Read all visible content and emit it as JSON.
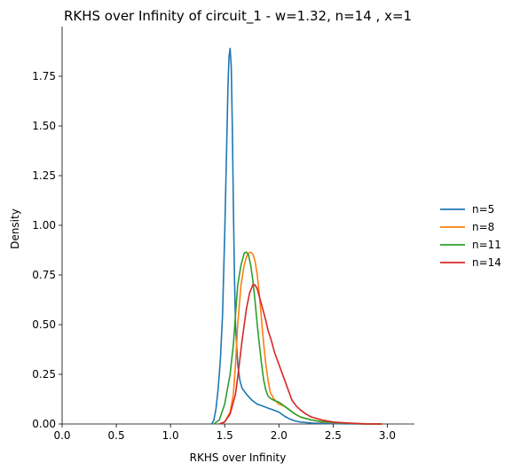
{
  "chart_data": {
    "type": "line",
    "title": "RKHS over Infinity of circuit_1 - w=1.32, n=14 , x=1",
    "xlabel": "RKHS over Infinity",
    "ylabel": "Density",
    "xlim": [
      0.0,
      3.25
    ],
    "ylim": [
      0.0,
      2.0
    ],
    "xticks": [
      0.0,
      0.5,
      1.0,
      1.5,
      2.0,
      2.5,
      3.0
    ],
    "yticks": [
      0.0,
      0.25,
      0.5,
      0.75,
      1.0,
      1.25,
      1.5,
      1.75
    ],
    "grid": false,
    "legend_position": "right",
    "series": [
      {
        "name": "n=5",
        "color": "#1f77b4",
        "x": [
          1.38,
          1.4,
          1.42,
          1.44,
          1.46,
          1.48,
          1.5,
          1.52,
          1.53,
          1.54,
          1.55,
          1.56,
          1.57,
          1.58,
          1.59,
          1.6,
          1.62,
          1.64,
          1.66,
          1.7,
          1.75,
          1.8,
          1.85,
          1.9,
          1.95,
          2.0,
          2.05,
          2.1,
          2.15,
          2.2,
          2.3,
          2.4,
          2.5,
          2.6,
          2.7,
          2.8,
          2.95
        ],
        "y": [
          0.0,
          0.02,
          0.08,
          0.18,
          0.32,
          0.55,
          0.95,
          1.45,
          1.7,
          1.85,
          1.89,
          1.8,
          1.5,
          1.1,
          0.75,
          0.5,
          0.3,
          0.22,
          0.18,
          0.15,
          0.12,
          0.1,
          0.09,
          0.08,
          0.07,
          0.06,
          0.04,
          0.025,
          0.015,
          0.01,
          0.005,
          0.003,
          0.002,
          0.001,
          0.0,
          0.0,
          0.0
        ]
      },
      {
        "name": "n=8",
        "color": "#ff7f0e",
        "x": [
          1.45,
          1.5,
          1.55,
          1.58,
          1.6,
          1.62,
          1.65,
          1.68,
          1.7,
          1.72,
          1.74,
          1.76,
          1.78,
          1.8,
          1.82,
          1.84,
          1.86,
          1.88,
          1.9,
          1.92,
          1.95,
          1.98,
          2.0,
          2.05,
          2.1,
          2.15,
          2.2,
          2.3,
          2.4,
          2.5,
          2.6,
          2.7,
          2.8,
          2.95
        ],
        "y": [
          0.0,
          0.01,
          0.06,
          0.15,
          0.3,
          0.5,
          0.7,
          0.8,
          0.84,
          0.86,
          0.865,
          0.855,
          0.82,
          0.75,
          0.65,
          0.52,
          0.4,
          0.3,
          0.22,
          0.16,
          0.13,
          0.11,
          0.1,
          0.09,
          0.07,
          0.05,
          0.035,
          0.02,
          0.01,
          0.007,
          0.004,
          0.002,
          0.0,
          0.0
        ]
      },
      {
        "name": "n=11",
        "color": "#2ca02c",
        "x": [
          1.4,
          1.45,
          1.5,
          1.55,
          1.58,
          1.6,
          1.62,
          1.65,
          1.68,
          1.7,
          1.72,
          1.74,
          1.76,
          1.78,
          1.8,
          1.82,
          1.84,
          1.86,
          1.88,
          1.9,
          1.92,
          1.95,
          2.0,
          2.05,
          2.1,
          2.15,
          2.2,
          2.3,
          2.4,
          2.5,
          2.6,
          2.7,
          2.8,
          2.95
        ],
        "y": [
          0.0,
          0.02,
          0.1,
          0.25,
          0.4,
          0.55,
          0.7,
          0.8,
          0.86,
          0.865,
          0.85,
          0.8,
          0.72,
          0.62,
          0.5,
          0.4,
          0.3,
          0.22,
          0.17,
          0.14,
          0.13,
          0.12,
          0.11,
          0.09,
          0.07,
          0.05,
          0.035,
          0.02,
          0.012,
          0.008,
          0.004,
          0.002,
          0.0,
          0.0
        ]
      },
      {
        "name": "n=14",
        "color": "#d62728",
        "x": [
          1.45,
          1.5,
          1.55,
          1.6,
          1.63,
          1.66,
          1.7,
          1.73,
          1.76,
          1.78,
          1.8,
          1.82,
          1.85,
          1.88,
          1.9,
          1.93,
          1.96,
          2.0,
          2.04,
          2.08,
          2.12,
          2.16,
          2.2,
          2.25,
          2.3,
          2.4,
          2.5,
          2.6,
          2.7,
          2.8,
          2.95
        ],
        "y": [
          0.0,
          0.01,
          0.05,
          0.15,
          0.28,
          0.42,
          0.58,
          0.66,
          0.7,
          0.7,
          0.68,
          0.64,
          0.58,
          0.52,
          0.47,
          0.42,
          0.36,
          0.3,
          0.24,
          0.18,
          0.12,
          0.09,
          0.07,
          0.05,
          0.035,
          0.02,
          0.01,
          0.006,
          0.003,
          0.001,
          0.0
        ]
      }
    ]
  }
}
